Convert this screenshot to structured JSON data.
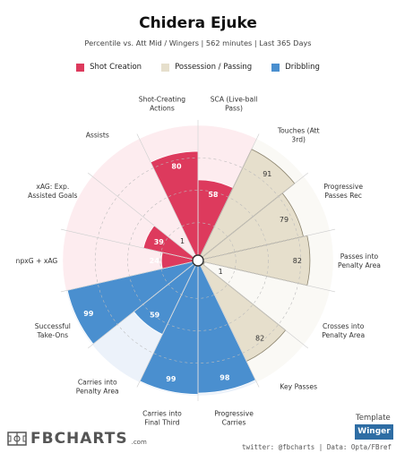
{
  "header": {
    "title": "Chidera Ejuke",
    "subtitle": "Percentile vs. Att Mid / Wingers | 562 minutes | Last 365 Days"
  },
  "legend": [
    {
      "label": "Shot Creation",
      "color": "#dd3a5d"
    },
    {
      "label": "Possession / Passing",
      "color": "#e6dfcc"
    },
    {
      "label": "Dribbling",
      "color": "#4a8fcf"
    }
  ],
  "footer": {
    "template_label": "Template",
    "template_value": "Winger",
    "credit": "twitter: @fbcharts | Data: Opta/FBref",
    "logo_text": "FBCHARTS",
    "logo_suffix": ".com"
  },
  "chart_data": {
    "type": "polar-bar",
    "max": 100,
    "categories": [
      "SCA (Live-ball Pass)",
      "Touches (Att 3rd)",
      "Progressive Passes Rec",
      "Passes into Penalty Area",
      "Crosses into Penalty Area",
      "Key Passes",
      "Progressive Carries",
      "Carries into Final Third",
      "Carries into Penalty Area",
      "Successful Take-Ons",
      "npxG + xAG",
      "xAG: Exp. Assisted Goals",
      "Assists",
      "Shot-Creating Actions"
    ],
    "groups": [
      "Shot Creation",
      "Possession / Passing",
      "Possession / Passing",
      "Possession / Passing",
      "Possession / Passing",
      "Possession / Passing",
      "Dribbling",
      "Dribbling",
      "Dribbling",
      "Dribbling",
      "Shot Creation",
      "Shot Creation",
      "Shot Creation",
      "Shot Creation"
    ],
    "values": [
      58,
      91,
      79,
      82,
      1,
      82,
      98,
      99,
      59,
      99,
      24,
      39,
      1,
      80
    ],
    "colors": {
      "Shot Creation": {
        "fill": "#dd3a5d",
        "background": "#fdecef"
      },
      "Possession / Passing": {
        "fill": "#e6dfcc",
        "background": "#faf9f5"
      },
      "Dribbling": {
        "fill": "#4a8fcf",
        "background": "#ecf2fa"
      }
    }
  }
}
